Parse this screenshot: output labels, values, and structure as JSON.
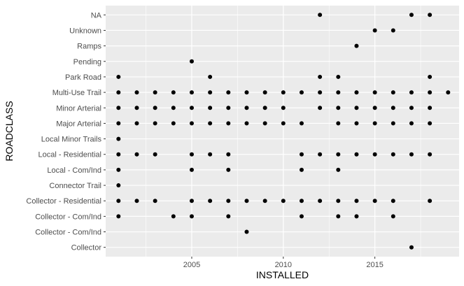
{
  "chart_data": {
    "type": "scatter",
    "xlabel": "INSTALLED",
    "ylabel": "ROADCLASS",
    "xlim": [
      2000.3,
      2019.6
    ],
    "x_ticks": [
      2005,
      2010,
      2015
    ],
    "x_tick_labels": [
      "2005",
      "2010",
      "2015"
    ],
    "categories": [
      "Collector",
      "Collector - Com/Ind",
      "Collector - Com/Ind",
      "Collector - Residential",
      "Connector Trail",
      "Local - Com/Ind",
      "Local - Residential",
      "Local Minor Trails",
      "Major Arterial",
      "Minor Arterial",
      "Multi-Use Trail",
      "Park Road",
      "Pending",
      "Ramps",
      "Unknown",
      "NA"
    ],
    "grid": true,
    "panel_color": "#ebebeb",
    "point_color": "#000000",
    "points": [
      [
        2017,
        0
      ],
      [
        2008,
        1
      ],
      [
        2001,
        2
      ],
      [
        2004,
        2
      ],
      [
        2005,
        2
      ],
      [
        2007,
        2
      ],
      [
        2011,
        2
      ],
      [
        2013,
        2
      ],
      [
        2014,
        2
      ],
      [
        2016,
        2
      ],
      [
        2001,
        3
      ],
      [
        2002,
        3
      ],
      [
        2003,
        3
      ],
      [
        2005,
        3
      ],
      [
        2006,
        3
      ],
      [
        2007,
        3
      ],
      [
        2008,
        3
      ],
      [
        2009,
        3
      ],
      [
        2010,
        3
      ],
      [
        2011,
        3
      ],
      [
        2012,
        3
      ],
      [
        2013,
        3
      ],
      [
        2014,
        3
      ],
      [
        2015,
        3
      ],
      [
        2016,
        3
      ],
      [
        2018,
        3
      ],
      [
        2001,
        4
      ],
      [
        2001,
        5
      ],
      [
        2005,
        5
      ],
      [
        2007,
        5
      ],
      [
        2011,
        5
      ],
      [
        2013,
        5
      ],
      [
        2001,
        6
      ],
      [
        2002,
        6
      ],
      [
        2003,
        6
      ],
      [
        2005,
        6
      ],
      [
        2006,
        6
      ],
      [
        2007,
        6
      ],
      [
        2011,
        6
      ],
      [
        2012,
        6
      ],
      [
        2013,
        6
      ],
      [
        2014,
        6
      ],
      [
        2015,
        6
      ],
      [
        2016,
        6
      ],
      [
        2017,
        6
      ],
      [
        2018,
        6
      ],
      [
        2001,
        7
      ],
      [
        2001,
        8
      ],
      [
        2002,
        8
      ],
      [
        2003,
        8
      ],
      [
        2004,
        8
      ],
      [
        2005,
        8
      ],
      [
        2006,
        8
      ],
      [
        2007,
        8
      ],
      [
        2008,
        8
      ],
      [
        2009,
        8
      ],
      [
        2010,
        8
      ],
      [
        2011,
        8
      ],
      [
        2013,
        8
      ],
      [
        2014,
        8
      ],
      [
        2015,
        8
      ],
      [
        2016,
        8
      ],
      [
        2017,
        8
      ],
      [
        2018,
        8
      ],
      [
        2001,
        9
      ],
      [
        2002,
        9
      ],
      [
        2003,
        9
      ],
      [
        2004,
        9
      ],
      [
        2005,
        9
      ],
      [
        2006,
        9
      ],
      [
        2007,
        9
      ],
      [
        2008,
        9
      ],
      [
        2009,
        9
      ],
      [
        2010,
        9
      ],
      [
        2012,
        9
      ],
      [
        2013,
        9
      ],
      [
        2014,
        9
      ],
      [
        2015,
        9
      ],
      [
        2016,
        9
      ],
      [
        2017,
        9
      ],
      [
        2018,
        9
      ],
      [
        2001,
        10
      ],
      [
        2002,
        10
      ],
      [
        2003,
        10
      ],
      [
        2004,
        10
      ],
      [
        2005,
        10
      ],
      [
        2006,
        10
      ],
      [
        2007,
        10
      ],
      [
        2008,
        10
      ],
      [
        2009,
        10
      ],
      [
        2010,
        10
      ],
      [
        2011,
        10
      ],
      [
        2012,
        10
      ],
      [
        2013,
        10
      ],
      [
        2014,
        10
      ],
      [
        2015,
        10
      ],
      [
        2016,
        10
      ],
      [
        2017,
        10
      ],
      [
        2018,
        10
      ],
      [
        2019,
        10
      ],
      [
        2001,
        11
      ],
      [
        2006,
        11
      ],
      [
        2012,
        11
      ],
      [
        2013,
        11
      ],
      [
        2018,
        11
      ],
      [
        2005,
        12
      ],
      [
        2014,
        13
      ],
      [
        2015,
        14
      ],
      [
        2016,
        14
      ],
      [
        2012,
        15
      ],
      [
        2017,
        15
      ],
      [
        2018,
        15
      ]
    ]
  }
}
